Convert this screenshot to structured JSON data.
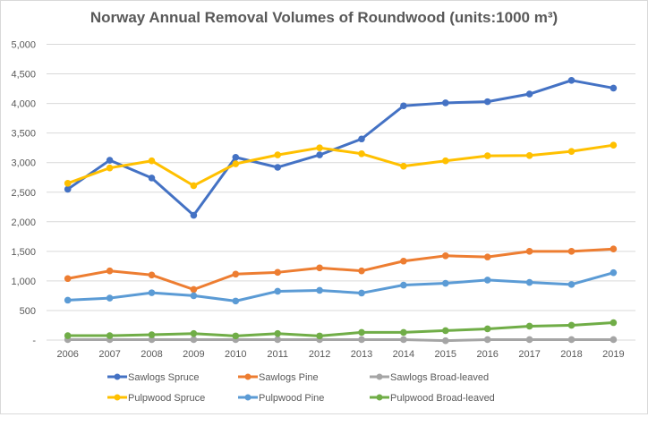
{
  "chart_data": {
    "type": "line",
    "title": "Norway Annual Removal Volumes of Roundwood (units:1000 m³)",
    "xlabel": "",
    "ylabel": "",
    "x": [
      "2006",
      "2007",
      "2008",
      "2009",
      "2010",
      "2011",
      "2012",
      "2013",
      "2014",
      "2015",
      "2016",
      "2017",
      "2018",
      "2019"
    ],
    "ylim": [
      0,
      5000
    ],
    "y_ticks": [
      0,
      500,
      1000,
      1500,
      2000,
      2500,
      3000,
      3500,
      4000,
      4500,
      5000
    ],
    "y_tick_labels": [
      "-",
      "500",
      "1,000",
      "1,500",
      "2,000",
      "2,500",
      "3,000",
      "3,500",
      "4,000",
      "4,500",
      "5,000"
    ],
    "grid": true,
    "legend_position": "bottom",
    "series": [
      {
        "name": "Sawlogs Spruce",
        "color": "#4472C4",
        "values": [
          2550,
          3040,
          2740,
          2110,
          3090,
          2920,
          3130,
          3400,
          3960,
          4010,
          4030,
          4160,
          4390,
          4260
        ]
      },
      {
        "name": "Sawlogs Pine",
        "color": "#ED7D31",
        "values": [
          1040,
          1170,
          1100,
          855,
          1115,
          1145,
          1220,
          1170,
          1335,
          1425,
          1405,
          1500,
          1500,
          1540
        ]
      },
      {
        "name": "Sawlogs Broad-leaved",
        "color": "#A5A5A5",
        "values": [
          8,
          8,
          8,
          8,
          8,
          8,
          8,
          8,
          8,
          -10,
          8,
          8,
          8,
          8
        ]
      },
      {
        "name": "Pulpwood Spruce",
        "color": "#FFC000",
        "values": [
          2650,
          2910,
          3030,
          2610,
          2980,
          3130,
          3250,
          3150,
          2940,
          3030,
          3115,
          3120,
          3190,
          3295
        ]
      },
      {
        "name": "Pulpwood Pine",
        "color": "#5B9BD5",
        "values": [
          675,
          710,
          800,
          750,
          660,
          825,
          840,
          795,
          930,
          960,
          1015,
          975,
          940,
          1140
        ]
      },
      {
        "name": "Pulpwood Broad-leaved",
        "color": "#70AD47",
        "values": [
          75,
          75,
          90,
          110,
          70,
          110,
          70,
          130,
          130,
          160,
          190,
          235,
          250,
          295
        ]
      }
    ]
  }
}
